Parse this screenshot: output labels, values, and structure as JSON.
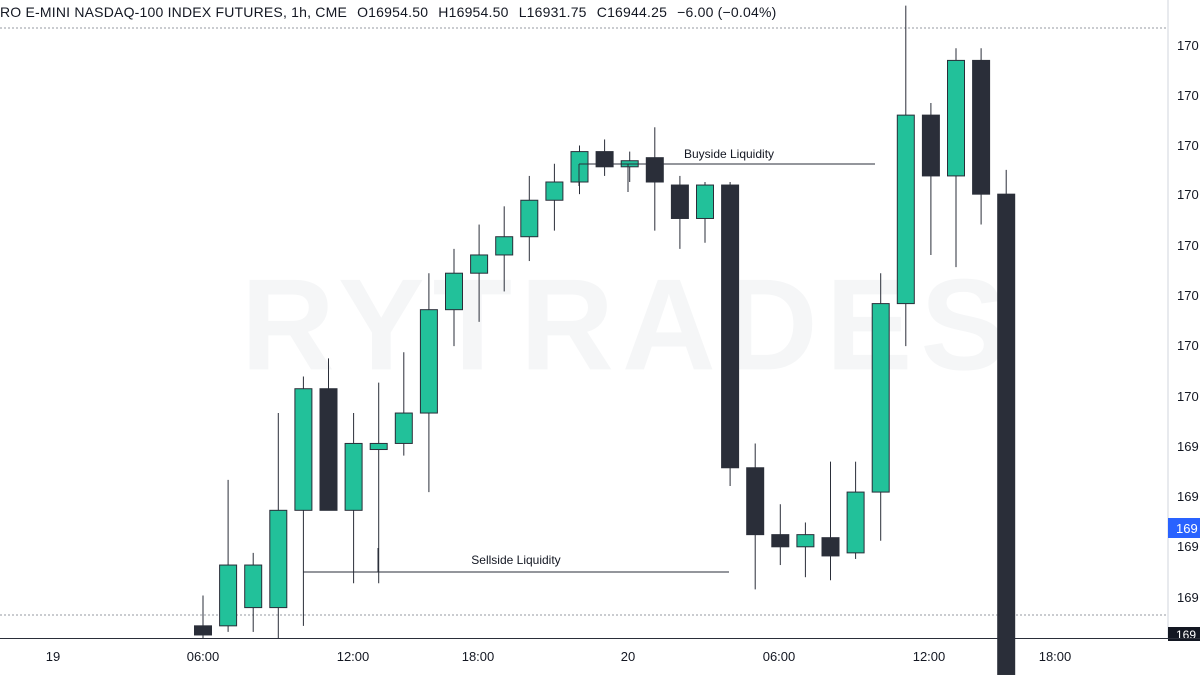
{
  "header": {
    "symbol": "RO E-MINI NASDAQ-100 INDEX FUTURES, 1h, CME",
    "open": "O16954.50",
    "high": "H16954.50",
    "low": "L16931.75",
    "close": "C16944.25",
    "change": "−6.00 (−0.04%)"
  },
  "watermark": "RYTRADES",
  "colors": {
    "up": "#22c19a",
    "down": "#2a2e39",
    "wick": "#2a2e39",
    "price_tag": "#2962ff",
    "axis_line": "#2a2e39",
    "dotted": "#9598a1"
  },
  "annotations": {
    "buyside": "Buyside Liquidity",
    "sellside": "Sellside Liquidity"
  },
  "chart_data": {
    "type": "candlestick",
    "timeframe": "1h",
    "x_tick_labels": [
      "19",
      "06:00",
      "12:00",
      "18:00",
      "20",
      "06:00",
      "12:00",
      "18:00"
    ],
    "y_tick_labels": [
      "170",
      "170",
      "170",
      "170",
      "170",
      "170",
      "170",
      "170",
      "169",
      "169",
      "169",
      "169"
    ],
    "current_price_tag": "169",
    "bottom_price_tag": "169",
    "y_unit": "relative price (0 = chart bottom, 100 = chart top, estimated)",
    "candles": [
      {
        "o": 2,
        "h": 7,
        "l": 0,
        "c": 0.5
      },
      {
        "o": 2,
        "h": 26,
        "l": 1,
        "c": 12
      },
      {
        "o": 5,
        "h": 14,
        "l": 1,
        "c": 12
      },
      {
        "o": 5,
        "h": 37,
        "l": 0,
        "c": 21
      },
      {
        "o": 21,
        "h": 43,
        "l": 2,
        "c": 41
      },
      {
        "o": 41,
        "h": 46,
        "l": 21,
        "c": 21
      },
      {
        "o": 21,
        "h": 37,
        "l": 9,
        "c": 32
      },
      {
        "o": 31,
        "h": 42,
        "l": 9,
        "c": 32
      },
      {
        "o": 32,
        "h": 47,
        "l": 30,
        "c": 37
      },
      {
        "o": 37,
        "h": 60,
        "l": 24,
        "c": 54
      },
      {
        "o": 54,
        "h": 64,
        "l": 48,
        "c": 60
      },
      {
        "o": 60,
        "h": 68,
        "l": 52,
        "c": 63
      },
      {
        "o": 63,
        "h": 71,
        "l": 57,
        "c": 66
      },
      {
        "o": 66,
        "h": 76,
        "l": 62,
        "c": 72
      },
      {
        "o": 72,
        "h": 78,
        "l": 67,
        "c": 75
      },
      {
        "o": 75,
        "h": 81,
        "l": 73,
        "c": 80
      },
      {
        "o": 80,
        "h": 82,
        "l": 76,
        "c": 77.5
      },
      {
        "o": 77.5,
        "h": 80,
        "l": 75,
        "c": 78.5
      },
      {
        "o": 79,
        "h": 84,
        "l": 67,
        "c": 75
      },
      {
        "o": 74.5,
        "h": 76,
        "l": 64,
        "c": 69
      },
      {
        "o": 69,
        "h": 75,
        "l": 65,
        "c": 74.5
      },
      {
        "o": 74.5,
        "h": 75,
        "l": 25,
        "c": 28
      },
      {
        "o": 28,
        "h": 32,
        "l": 8,
        "c": 17
      },
      {
        "o": 17,
        "h": 22,
        "l": 12,
        "c": 15
      },
      {
        "o": 15,
        "h": 19,
        "l": 10,
        "c": 17
      },
      {
        "o": 16.5,
        "h": 29,
        "l": 9.5,
        "c": 13.5
      },
      {
        "o": 14,
        "h": 29,
        "l": 13,
        "c": 24
      },
      {
        "o": 24,
        "h": 60,
        "l": 16,
        "c": 55
      },
      {
        "o": 55,
        "h": 104,
        "l": 48,
        "c": 86
      },
      {
        "o": 86,
        "h": 88,
        "l": 63,
        "c": 76
      },
      {
        "o": 76,
        "h": 97,
        "l": 61,
        "c": 95
      },
      {
        "o": 95,
        "h": 97,
        "l": 68,
        "c": 73
      },
      {
        "o": 73,
        "h": 77,
        "l": -6,
        "c": -6
      }
    ]
  }
}
